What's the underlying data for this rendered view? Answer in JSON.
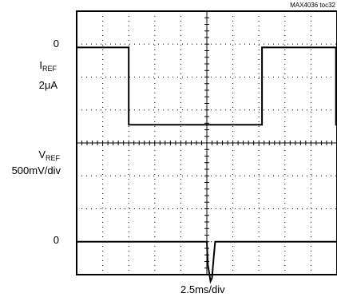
{
  "chart_data": {
    "type": "line",
    "tag": "MAX4036 toc32",
    "xlabel": "2.5ms/div",
    "x_unit": "ms",
    "xlim": [
      0,
      25
    ],
    "divisions": {
      "x": 10,
      "y": 8
    },
    "grid": true,
    "channels": [
      {
        "name": "IREF",
        "name_main": "I",
        "name_sub": "REF",
        "scale": "2μA",
        "zero_label": "0",
        "unit": "μA",
        "x": [
          0,
          5.0,
          5.0,
          17.8,
          17.8,
          24.9,
          24.9,
          25
        ],
        "values": [
          0,
          0,
          -4.7,
          -4.7,
          0,
          0,
          -4.7,
          -4.7
        ]
      },
      {
        "name": "VREF",
        "name_main": "V",
        "name_sub": "REF",
        "scale": "500mV/div",
        "zero_label": "0",
        "unit": "V",
        "x": [
          0,
          12.5,
          12.6,
          12.85,
          13.0,
          13.15,
          13.3,
          25
        ],
        "values": [
          0,
          0,
          -0.35,
          -0.6,
          -0.55,
          -0.25,
          0,
          0
        ]
      }
    ]
  }
}
